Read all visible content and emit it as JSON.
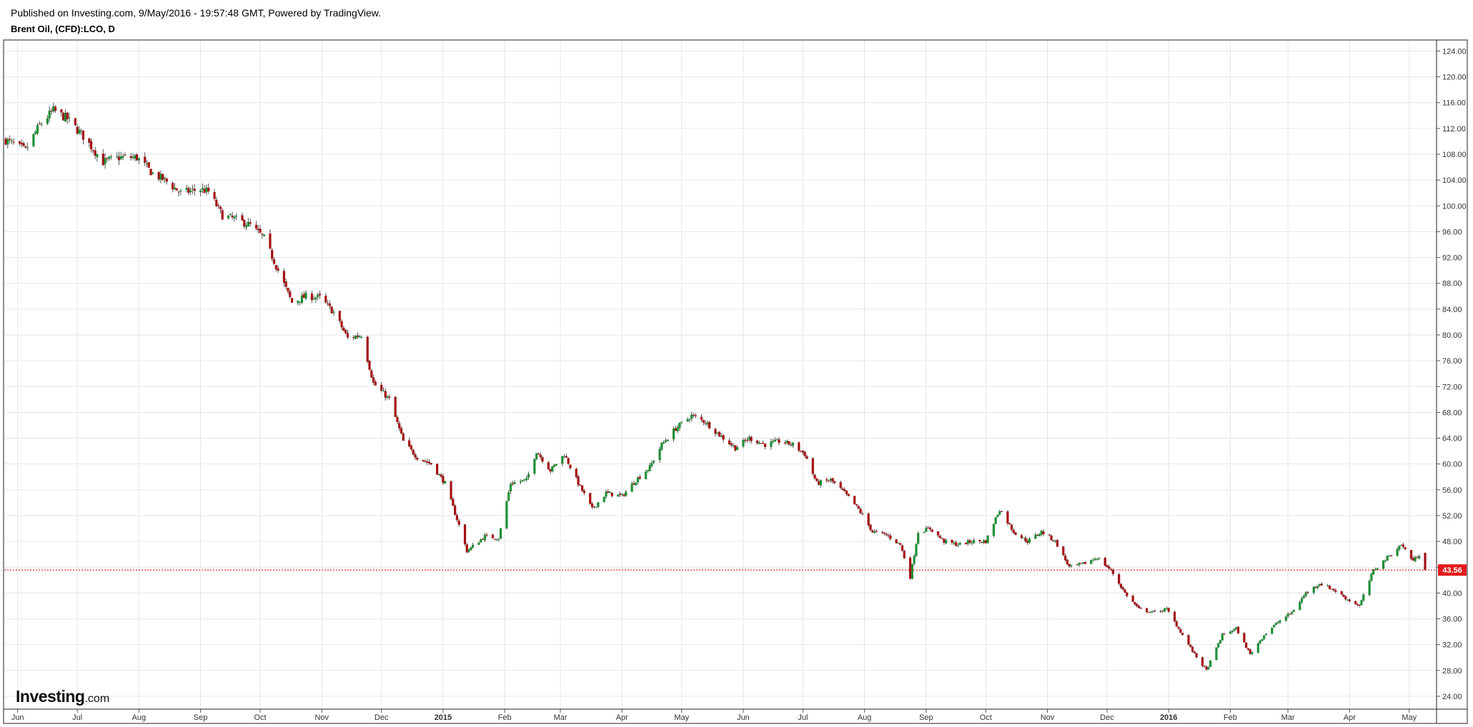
{
  "header": {
    "published": "Published on Investing.com, 9/May/2016 - 19:57:48 GMT, Powered by TradingView.",
    "symbol": "Brent Oil, (CFD):LCO, D"
  },
  "logo": {
    "main": "Investing",
    "suffix": ".com"
  },
  "colors": {
    "up": "#1e8f35",
    "down": "#a40f12",
    "wick": "#555555",
    "grid": "#e6e6e6",
    "last_price": "#e41a1c"
  },
  "chart_data": {
    "type": "candlestick",
    "title": "Brent Oil, (CFD):LCO, D",
    "ylim": [
      22,
      125.6
    ],
    "y_ticks": [
      "24.00",
      "28.00",
      "32.00",
      "36.00",
      "40.00",
      "44.00",
      "48.00",
      "52.00",
      "56.00",
      "60.00",
      "64.00",
      "68.00",
      "72.00",
      "76.00",
      "80.00",
      "84.00",
      "88.00",
      "92.00",
      "96.00",
      "100.00",
      "104.00",
      "108.00",
      "112.00",
      "116.00",
      "120.00",
      "124.00"
    ],
    "x_ticks": [
      {
        "label": "Jun",
        "date": "2014-06-01"
      },
      {
        "label": "Jul",
        "date": "2014-07-01"
      },
      {
        "label": "Aug",
        "date": "2014-08-01"
      },
      {
        "label": "Sep",
        "date": "2014-09-01"
      },
      {
        "label": "Oct",
        "date": "2014-10-01"
      },
      {
        "label": "Nov",
        "date": "2014-11-01"
      },
      {
        "label": "Dec",
        "date": "2014-12-01"
      },
      {
        "label": "2015",
        "date": "2015-01-01",
        "bold": true
      },
      {
        "label": "Feb",
        "date": "2015-02-01"
      },
      {
        "label": "Mar",
        "date": "2015-03-01"
      },
      {
        "label": "Apr",
        "date": "2015-04-01"
      },
      {
        "label": "May",
        "date": "2015-05-01"
      },
      {
        "label": "Jun",
        "date": "2015-06-01"
      },
      {
        "label": "Jul",
        "date": "2015-07-01"
      },
      {
        "label": "Aug",
        "date": "2015-08-01"
      },
      {
        "label": "Sep",
        "date": "2015-09-01"
      },
      {
        "label": "Oct",
        "date": "2015-10-01"
      },
      {
        "label": "Nov",
        "date": "2015-11-01"
      },
      {
        "label": "Dec",
        "date": "2015-12-01"
      },
      {
        "label": "2016",
        "date": "2016-01-01",
        "bold": true
      },
      {
        "label": "Feb",
        "date": "2016-02-01"
      },
      {
        "label": "Mar",
        "date": "2016-03-01"
      },
      {
        "label": "Apr",
        "date": "2016-04-01"
      },
      {
        "label": "May",
        "date": "2016-05-01"
      }
    ],
    "date_range": [
      "2014-05-26",
      "2016-05-09"
    ],
    "last_price": 43.56,
    "last_price_label": "43.56",
    "close_path": [
      [
        "2014-05-26",
        110.2
      ],
      [
        "2014-06-05",
        108.6
      ],
      [
        "2014-06-12",
        112.5
      ],
      [
        "2014-06-19",
        114.8
      ],
      [
        "2014-06-26",
        113.5
      ],
      [
        "2014-07-04",
        110.8
      ],
      [
        "2014-07-14",
        106.8
      ],
      [
        "2014-07-22",
        107.5
      ],
      [
        "2014-07-31",
        107.5
      ],
      [
        "2014-08-08",
        105.0
      ],
      [
        "2014-08-14",
        104.0
      ],
      [
        "2014-08-22",
        102.0
      ],
      [
        "2014-09-01",
        102.6
      ],
      [
        "2014-09-05",
        102.2
      ],
      [
        "2014-09-12",
        98.5
      ],
      [
        "2014-09-18",
        98.0
      ],
      [
        "2014-09-26",
        97.0
      ],
      [
        "2014-10-03",
        95.0
      ],
      [
        "2014-10-10",
        90.0
      ],
      [
        "2014-10-17",
        85.0
      ],
      [
        "2014-10-24",
        86.0
      ],
      [
        "2014-10-31",
        85.8
      ],
      [
        "2014-11-07",
        83.5
      ],
      [
        "2014-11-14",
        79.5
      ],
      [
        "2014-11-21",
        80.0
      ],
      [
        "2014-11-27",
        72.5
      ],
      [
        "2014-12-05",
        70.0
      ],
      [
        "2014-12-12",
        63.5
      ],
      [
        "2014-12-19",
        61.0
      ],
      [
        "2014-12-26",
        60.0
      ],
      [
        "2015-01-02",
        57.0
      ],
      [
        "2015-01-09",
        50.5
      ],
      [
        "2015-01-13",
        46.5
      ],
      [
        "2015-01-22",
        48.8
      ],
      [
        "2015-01-29",
        48.5
      ],
      [
        "2015-02-04",
        57.0
      ],
      [
        "2015-02-12",
        57.5
      ],
      [
        "2015-02-17",
        62.0
      ],
      [
        "2015-02-24",
        59.0
      ],
      [
        "2015-03-03",
        61.5
      ],
      [
        "2015-03-10",
        57.0
      ],
      [
        "2015-03-17",
        53.0
      ],
      [
        "2015-03-24",
        55.5
      ],
      [
        "2015-04-01",
        55.0
      ],
      [
        "2015-04-08",
        57.5
      ],
      [
        "2015-04-15",
        59.5
      ],
      [
        "2015-04-21",
        63.0
      ],
      [
        "2015-04-28",
        65.5
      ],
      [
        "2015-05-06",
        67.5
      ],
      [
        "2015-05-13",
        66.5
      ],
      [
        "2015-05-20",
        64.5
      ],
      [
        "2015-05-28",
        62.5
      ],
      [
        "2015-06-04",
        64.0
      ],
      [
        "2015-06-12",
        63.0
      ],
      [
        "2015-06-19",
        63.5
      ],
      [
        "2015-06-26",
        63.0
      ],
      [
        "2015-07-02",
        61.5
      ],
      [
        "2015-07-08",
        57.0
      ],
      [
        "2015-07-15",
        57.5
      ],
      [
        "2015-07-22",
        55.5
      ],
      [
        "2015-07-29",
        53.0
      ],
      [
        "2015-08-05",
        49.5
      ],
      [
        "2015-08-12",
        49.0
      ],
      [
        "2015-08-19",
        47.5
      ],
      [
        "2015-08-24",
        42.5
      ],
      [
        "2015-08-28",
        49.5
      ],
      [
        "2015-09-03",
        50.0
      ],
      [
        "2015-09-10",
        48.0
      ],
      [
        "2015-09-17",
        47.5
      ],
      [
        "2015-09-24",
        48.0
      ],
      [
        "2015-10-01",
        48.0
      ],
      [
        "2015-10-08",
        53.0
      ],
      [
        "2015-10-15",
        49.5
      ],
      [
        "2015-10-22",
        48.0
      ],
      [
        "2015-10-29",
        49.5
      ],
      [
        "2015-11-05",
        48.0
      ],
      [
        "2015-11-12",
        44.0
      ],
      [
        "2015-11-19",
        44.5
      ],
      [
        "2015-11-26",
        45.5
      ],
      [
        "2015-12-03",
        43.5
      ],
      [
        "2015-12-10",
        40.0
      ],
      [
        "2015-12-17",
        37.5
      ],
      [
        "2015-12-24",
        37.0
      ],
      [
        "2015-12-31",
        37.5
      ],
      [
        "2016-01-07",
        34.0
      ],
      [
        "2016-01-14",
        30.5
      ],
      [
        "2016-01-20",
        28.0
      ],
      [
        "2016-01-28",
        33.5
      ],
      [
        "2016-02-04",
        34.5
      ],
      [
        "2016-02-11",
        30.5
      ],
      [
        "2016-02-18",
        33.5
      ],
      [
        "2016-02-25",
        35.5
      ],
      [
        "2016-03-03",
        37.0
      ],
      [
        "2016-03-10",
        40.0
      ],
      [
        "2016-03-17",
        41.5
      ],
      [
        "2016-03-24",
        40.5
      ],
      [
        "2016-03-31",
        39.0
      ],
      [
        "2016-04-06",
        38.0
      ],
      [
        "2016-04-13",
        43.5
      ],
      [
        "2016-04-20",
        45.5
      ],
      [
        "2016-04-27",
        47.5
      ],
      [
        "2016-05-03",
        45.0
      ],
      [
        "2016-05-06",
        46.0
      ],
      [
        "2016-05-09",
        43.56
      ]
    ]
  }
}
